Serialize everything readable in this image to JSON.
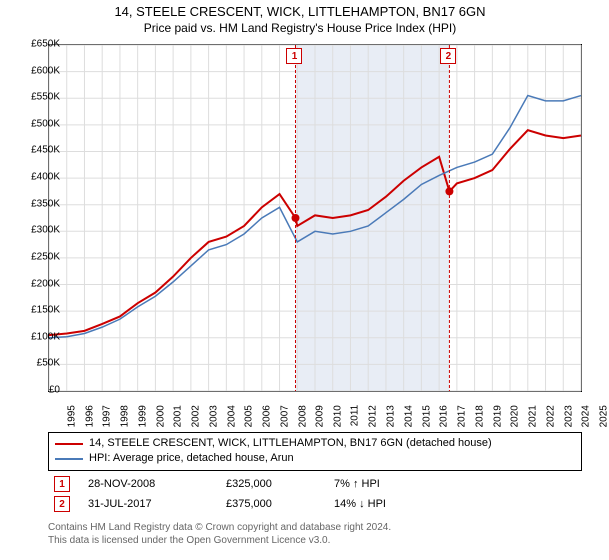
{
  "title_line1": "14, STEELE CRESCENT, WICK, LITTLEHAMPTON, BN17 6GN",
  "title_line2": "Price paid vs. HM Land Registry's House Price Index (HPI)",
  "chart": {
    "type": "line",
    "background_color": "#ffffff",
    "grid_color": "#dddddd",
    "shaded_region_color": "#e8edf5",
    "y": {
      "min": 0,
      "max": 650000,
      "step": 50000,
      "ticks": [
        "£0",
        "£50K",
        "£100K",
        "£150K",
        "£200K",
        "£250K",
        "£300K",
        "£350K",
        "£400K",
        "£450K",
        "£500K",
        "£550K",
        "£600K",
        "£650K"
      ]
    },
    "x_years": [
      "1995",
      "1996",
      "1997",
      "1998",
      "1999",
      "2000",
      "2001",
      "2002",
      "2003",
      "2004",
      "2005",
      "2006",
      "2007",
      "2008",
      "2009",
      "2010",
      "2011",
      "2012",
      "2013",
      "2014",
      "2015",
      "2016",
      "2017",
      "2018",
      "2019",
      "2020",
      "2021",
      "2022",
      "2023",
      "2024",
      "2025"
    ],
    "shaded_region": {
      "start_year": 2008.9,
      "end_year": 2017.58
    },
    "series": [
      {
        "name": "14, STEELE CRESCENT, WICK, LITTLEHAMPTON, BN17 6GN (detached house)",
        "color": "#cc0000",
        "line_width": 2,
        "points": [
          [
            1995,
            105000
          ],
          [
            1996,
            108000
          ],
          [
            1997,
            113000
          ],
          [
            1998,
            126000
          ],
          [
            1999,
            140000
          ],
          [
            2000,
            165000
          ],
          [
            2001,
            185000
          ],
          [
            2002,
            215000
          ],
          [
            2003,
            250000
          ],
          [
            2004,
            280000
          ],
          [
            2005,
            290000
          ],
          [
            2006,
            310000
          ],
          [
            2007,
            345000
          ],
          [
            2008,
            370000
          ],
          [
            2008.9,
            325000
          ],
          [
            2009,
            310000
          ],
          [
            2010,
            330000
          ],
          [
            2011,
            325000
          ],
          [
            2012,
            330000
          ],
          [
            2013,
            340000
          ],
          [
            2014,
            365000
          ],
          [
            2015,
            395000
          ],
          [
            2016,
            420000
          ],
          [
            2017,
            440000
          ],
          [
            2017.58,
            375000
          ],
          [
            2018,
            390000
          ],
          [
            2019,
            400000
          ],
          [
            2020,
            415000
          ],
          [
            2021,
            455000
          ],
          [
            2022,
            490000
          ],
          [
            2023,
            480000
          ],
          [
            2024,
            475000
          ],
          [
            2025,
            480000
          ]
        ],
        "sale_markers": [
          {
            "id": "1",
            "year": 2008.9,
            "price": 325000
          },
          {
            "id": "2",
            "year": 2017.58,
            "price": 375000
          }
        ]
      },
      {
        "name": "HPI: Average price, detached house, Arun",
        "color": "#4a7ab8",
        "line_width": 1.5,
        "points": [
          [
            1995,
            100000
          ],
          [
            1996,
            102000
          ],
          [
            1997,
            108000
          ],
          [
            1998,
            120000
          ],
          [
            1999,
            135000
          ],
          [
            2000,
            158000
          ],
          [
            2001,
            178000
          ],
          [
            2002,
            205000
          ],
          [
            2003,
            235000
          ],
          [
            2004,
            265000
          ],
          [
            2005,
            275000
          ],
          [
            2006,
            295000
          ],
          [
            2007,
            325000
          ],
          [
            2008,
            345000
          ],
          [
            2009,
            280000
          ],
          [
            2010,
            300000
          ],
          [
            2011,
            295000
          ],
          [
            2012,
            300000
          ],
          [
            2013,
            310000
          ],
          [
            2014,
            335000
          ],
          [
            2015,
            360000
          ],
          [
            2016,
            388000
          ],
          [
            2017,
            405000
          ],
          [
            2018,
            420000
          ],
          [
            2019,
            430000
          ],
          [
            2020,
            445000
          ],
          [
            2021,
            495000
          ],
          [
            2022,
            555000
          ],
          [
            2023,
            545000
          ],
          [
            2024,
            545000
          ],
          [
            2025,
            555000
          ]
        ]
      }
    ],
    "marker_point_style": {
      "fill": "#cc0000",
      "radius": 4
    }
  },
  "legend": {
    "items": [
      {
        "color": "#cc0000",
        "label": "14, STEELE CRESCENT, WICK, LITTLEHAMPTON, BN17 6GN (detached house)"
      },
      {
        "color": "#4a7ab8",
        "label": "HPI: Average price, detached house, Arun"
      }
    ]
  },
  "sales": [
    {
      "id": "1",
      "date": "28-NOV-2008",
      "price": "£325,000",
      "pct": "7% ↑ HPI"
    },
    {
      "id": "2",
      "date": "31-JUL-2017",
      "price": "£375,000",
      "pct": "14% ↓ HPI"
    }
  ],
  "footnote_line1": "Contains HM Land Registry data © Crown copyright and database right 2024.",
  "footnote_line2": "This data is licensed under the Open Government Licence v3.0."
}
